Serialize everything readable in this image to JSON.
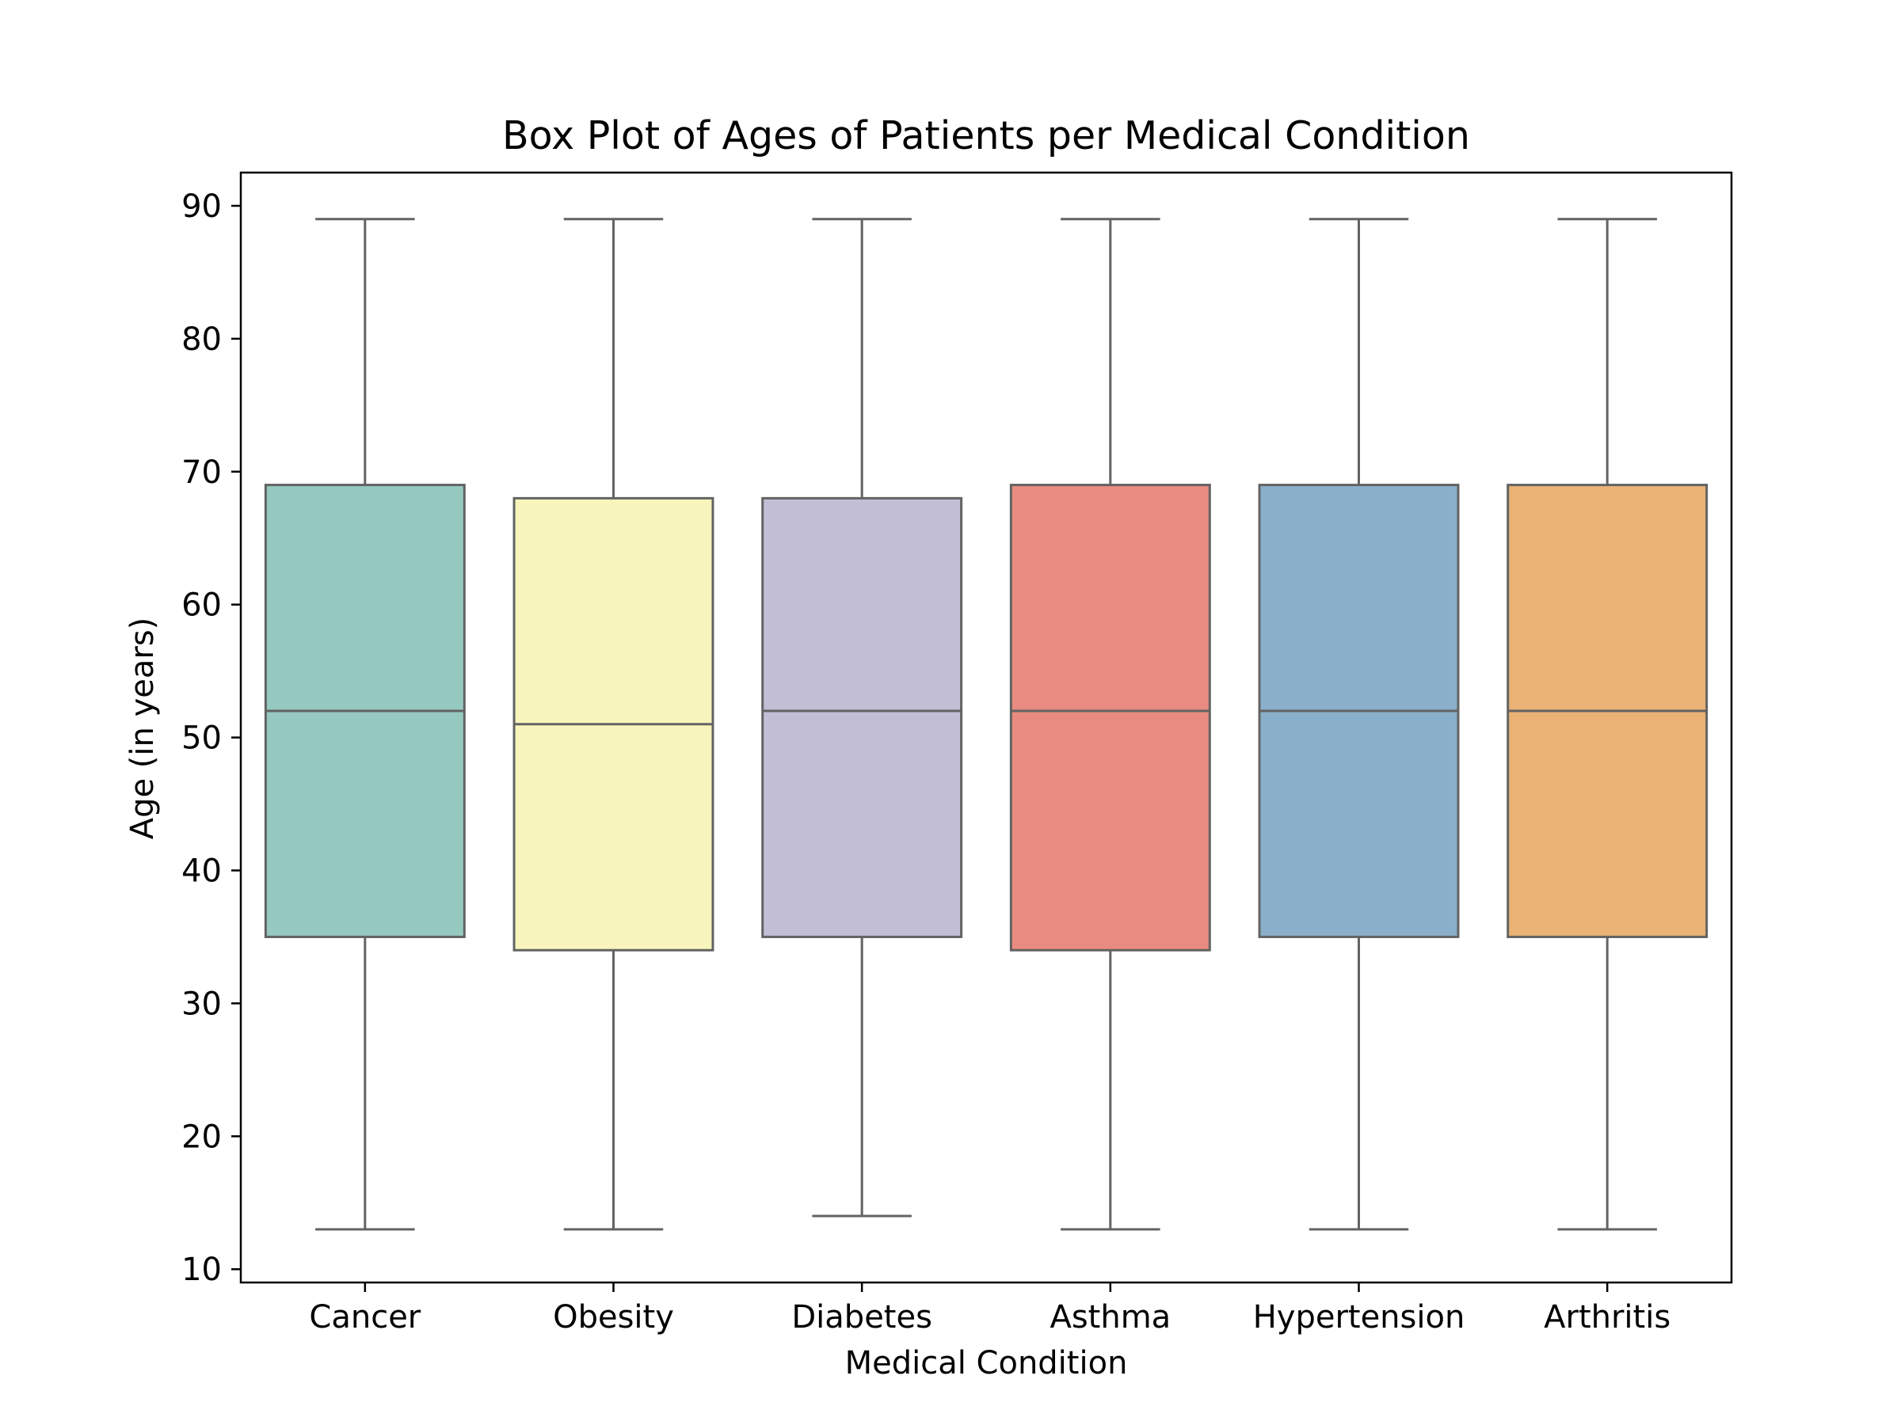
{
  "chart_data": {
    "type": "box",
    "title": "Box Plot of Ages of Patients per Medical Condition",
    "xlabel": "Medical Condition",
    "ylabel": "Age (in years)",
    "ylim": [
      9,
      92.5
    ],
    "yticks": [
      10,
      20,
      30,
      40,
      50,
      60,
      70,
      80,
      90
    ],
    "grid": false,
    "legend": "none",
    "categories": [
      "Cancer",
      "Obesity",
      "Diabetes",
      "Asthma",
      "Hypertension",
      "Arthritis"
    ],
    "boxes": [
      {
        "category": "Cancer",
        "min": 13,
        "q1": 35,
        "median": 52,
        "q3": 69,
        "max": 89,
        "color": "#96c9bf"
      },
      {
        "category": "Obesity",
        "min": 13,
        "q1": 34,
        "median": 51,
        "q3": 68,
        "max": 89,
        "color": "#f7f5bb"
      },
      {
        "category": "Diabetes",
        "min": 14,
        "q1": 35,
        "median": 52,
        "q3": 68,
        "max": 89,
        "color": "#c1bed6"
      },
      {
        "category": "Asthma",
        "min": 13,
        "q1": 34,
        "median": 52,
        "q3": 69,
        "max": 89,
        "color": "#ea8b81"
      },
      {
        "category": "Hypertension",
        "min": 13,
        "q1": 35,
        "median": 52,
        "q3": 69,
        "max": 89,
        "color": "#8aafca"
      },
      {
        "category": "Arthritis",
        "min": 13,
        "q1": 35,
        "median": 52,
        "q3": 69,
        "max": 89,
        "color": "#ebb275"
      }
    ],
    "line_color": "#636363"
  }
}
